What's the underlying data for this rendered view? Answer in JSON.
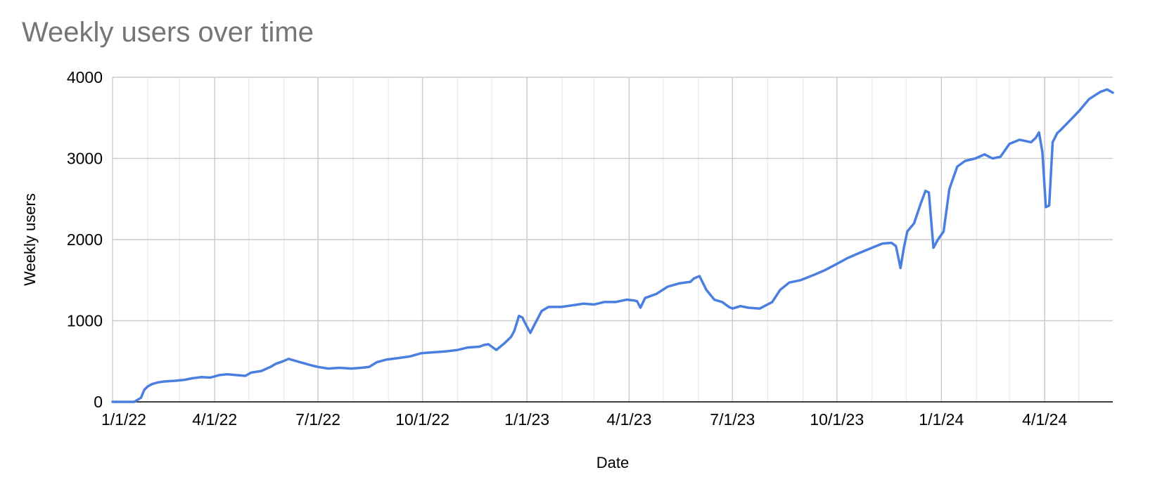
{
  "chart_data": {
    "type": "line",
    "title": "Weekly users over time",
    "xlabel": "Date",
    "ylabel": "Weekly users",
    "ylim": [
      0,
      4000
    ],
    "xlim": [
      "2022-01-01",
      "2024-05-31"
    ],
    "yticks": [
      0,
      1000,
      2000,
      3000,
      4000
    ],
    "yticklabels": [
      "0",
      "1000",
      "2000",
      "3000",
      "4000"
    ],
    "xticks": [
      "2022-01-01",
      "2022-04-01",
      "2022-07-01",
      "2022-10-01",
      "2023-01-01",
      "2023-04-01",
      "2023-07-01",
      "2023-10-01",
      "2024-01-01",
      "2024-04-01"
    ],
    "xticklabels": [
      "1/1/22",
      "4/1/22",
      "7/1/22",
      "10/1/22",
      "1/1/23",
      "4/1/23",
      "7/1/23",
      "10/1/23",
      "1/1/24",
      "4/1/24"
    ],
    "minor_gridlines": [
      "2022-02-01",
      "2022-03-01",
      "2022-05-01",
      "2022-06-01",
      "2022-08-01",
      "2022-09-01",
      "2022-11-01",
      "2022-12-01",
      "2023-02-01",
      "2023-03-01",
      "2023-05-01",
      "2023-06-01",
      "2023-08-01",
      "2023-09-01",
      "2023-11-01",
      "2023-12-01",
      "2024-02-01",
      "2024-03-01",
      "2024-05-01"
    ],
    "grid": true,
    "legend": "none",
    "line_color": "#4a7fe0",
    "series": [
      {
        "x": [
          "2022-01-01",
          "2022-01-20",
          "2022-01-26",
          "2022-01-29",
          "2022-02-01",
          "2022-02-05",
          "2022-02-10",
          "2022-02-15",
          "2022-02-20",
          "2022-02-25",
          "2022-03-05",
          "2022-03-12",
          "2022-03-20",
          "2022-03-28",
          "2022-04-05",
          "2022-04-12",
          "2022-04-20",
          "2022-04-28",
          "2022-05-03",
          "2022-05-12",
          "2022-05-20",
          "2022-05-25",
          "2022-05-31",
          "2022-06-05",
          "2022-06-15",
          "2022-06-25",
          "2022-07-01",
          "2022-07-10",
          "2022-07-20",
          "2022-07-30",
          "2022-08-08",
          "2022-08-15",
          "2022-08-22",
          "2022-08-30",
          "2022-09-10",
          "2022-09-20",
          "2022-09-30",
          "2022-10-10",
          "2022-10-20",
          "2022-11-01",
          "2022-11-10",
          "2022-11-20",
          "2022-11-24",
          "2022-11-28",
          "2022-12-05",
          "2022-12-12",
          "2022-12-18",
          "2022-12-21",
          "2022-12-25",
          "2022-12-28",
          "2022-12-30",
          "2023-01-04",
          "2023-01-08",
          "2023-01-14",
          "2023-01-20",
          "2023-01-31",
          "2023-02-10",
          "2023-02-20",
          "2023-03-01",
          "2023-03-10",
          "2023-03-20",
          "2023-03-30",
          "2023-04-05",
          "2023-04-08",
          "2023-04-11",
          "2023-04-15",
          "2023-04-25",
          "2023-05-05",
          "2023-05-15",
          "2023-05-25",
          "2023-05-28",
          "2023-06-02",
          "2023-06-08",
          "2023-06-15",
          "2023-06-22",
          "2023-06-28",
          "2023-07-01",
          "2023-07-08",
          "2023-07-15",
          "2023-07-25",
          "2023-08-05",
          "2023-08-12",
          "2023-08-20",
          "2023-08-30",
          "2023-09-10",
          "2023-09-20",
          "2023-10-01",
          "2023-10-10",
          "2023-10-20",
          "2023-11-01",
          "2023-11-10",
          "2023-11-18",
          "2023-11-22",
          "2023-11-26",
          "2023-11-29",
          "2023-12-02",
          "2023-12-08",
          "2023-12-14",
          "2023-12-18",
          "2023-12-21",
          "2023-12-25",
          "2023-12-29",
          "2024-01-03",
          "2024-01-08",
          "2024-01-10",
          "2024-01-15",
          "2024-01-22",
          "2024-01-31",
          "2024-02-08",
          "2024-02-15",
          "2024-02-22",
          "2024-03-01",
          "2024-03-10",
          "2024-03-20",
          "2024-03-24",
          "2024-03-27",
          "2024-03-30",
          "2024-04-02",
          "2024-04-05",
          "2024-04-08",
          "2024-04-12",
          "2024-04-15",
          "2024-04-22",
          "2024-05-01",
          "2024-05-10",
          "2024-05-20",
          "2024-05-26",
          "2024-05-31"
        ],
        "values": [
          0,
          0,
          50,
          150,
          190,
          220,
          240,
          250,
          255,
          260,
          270,
          290,
          305,
          300,
          330,
          340,
          330,
          320,
          360,
          380,
          430,
          470,
          500,
          530,
          490,
          450,
          430,
          410,
          420,
          410,
          420,
          430,
          490,
          520,
          540,
          560,
          600,
          610,
          620,
          640,
          670,
          680,
          700,
          710,
          640,
          720,
          800,
          880,
          1060,
          1040,
          980,
          850,
          960,
          1120,
          1170,
          1170,
          1190,
          1210,
          1200,
          1230,
          1230,
          1260,
          1250,
          1240,
          1160,
          1280,
          1330,
          1420,
          1460,
          1480,
          1520,
          1550,
          1380,
          1260,
          1230,
          1170,
          1150,
          1180,
          1160,
          1150,
          1230,
          1380,
          1470,
          1500,
          1560,
          1620,
          1700,
          1770,
          1830,
          1900,
          1950,
          1960,
          1920,
          1650,
          1900,
          2100,
          2200,
          2450,
          2600,
          2580,
          1900,
          2000,
          2100,
          2620,
          2700,
          2900,
          2970,
          3000,
          3050,
          3000,
          3020,
          3180,
          3230,
          3200,
          3250,
          3320,
          3080,
          2400,
          2420,
          3200,
          3310,
          3350,
          3450,
          3580,
          3730,
          3820,
          3850,
          3810
        ]
      }
    ]
  }
}
